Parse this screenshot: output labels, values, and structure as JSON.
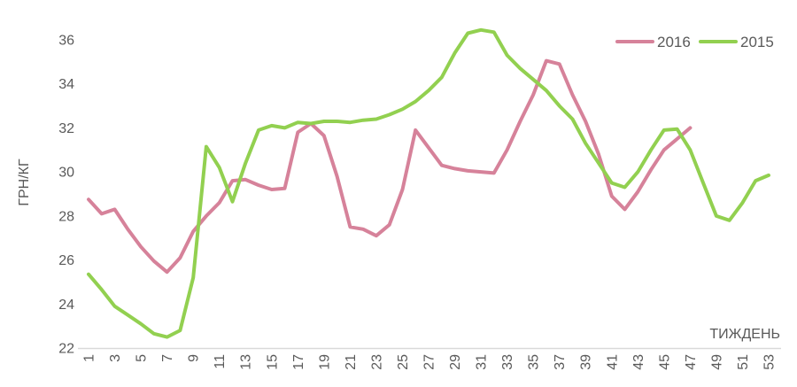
{
  "chart_data": {
    "type": "line",
    "title": "",
    "xlabel": "ТИЖДЕНЬ",
    "ylabel": "ГРН/КГ",
    "x_axis": "week number 1-53",
    "x_tick_labels": [
      1,
      3,
      5,
      7,
      9,
      11,
      13,
      15,
      17,
      19,
      21,
      23,
      25,
      27,
      29,
      31,
      33,
      35,
      37,
      39,
      41,
      43,
      45,
      47,
      49,
      51,
      53
    ],
    "y_tick_labels": [
      22,
      24,
      26,
      28,
      30,
      32,
      34,
      36
    ],
    "ylim": [
      22,
      36.6
    ],
    "grid": false,
    "legend_position": "top-right",
    "series": [
      {
        "name": "2016",
        "color": "#d6829a",
        "start_week": 1,
        "values": [
          28.75,
          28.1,
          28.3,
          27.4,
          26.6,
          25.95,
          25.45,
          26.1,
          27.3,
          28.0,
          28.6,
          29.6,
          29.65,
          29.4,
          29.2,
          29.25,
          31.8,
          32.2,
          31.65,
          29.8,
          27.5,
          27.4,
          27.1,
          27.6,
          29.2,
          31.9,
          31.1,
          30.3,
          30.15,
          30.05,
          30.0,
          29.95,
          31.0,
          32.3,
          33.5,
          35.05,
          34.9,
          33.5,
          32.3,
          30.8,
          28.9,
          28.3,
          29.1,
          30.1,
          31.0,
          31.5,
          32.0
        ]
      },
      {
        "name": "2015",
        "color": "#92d050",
        "start_week": 1,
        "values": [
          25.35,
          24.65,
          23.9,
          23.5,
          23.1,
          22.65,
          22.5,
          22.8,
          25.2,
          31.15,
          30.2,
          28.65,
          30.4,
          31.9,
          32.1,
          32.0,
          32.25,
          32.2,
          32.3,
          32.3,
          32.25,
          32.35,
          32.4,
          32.6,
          32.85,
          33.2,
          33.7,
          34.3,
          35.4,
          36.3,
          36.45,
          36.35,
          35.3,
          34.7,
          34.2,
          33.7,
          33.0,
          32.4,
          31.3,
          30.4,
          29.5,
          29.3,
          30.0,
          31.0,
          31.9,
          31.95,
          31.0,
          29.5,
          28.0,
          27.8,
          28.6,
          29.6,
          29.85
        ]
      }
    ]
  },
  "colors": {
    "background": "#ffffff",
    "axis_text": "#595959",
    "axis_line": "#d9d9d9",
    "series_2016": "#d6829a",
    "series_2015": "#92d050"
  }
}
